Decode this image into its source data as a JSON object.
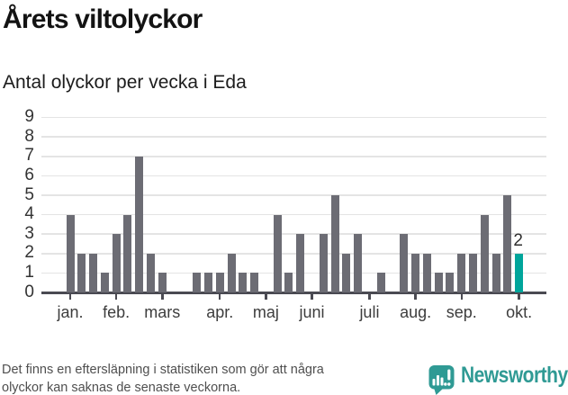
{
  "header": {
    "title": "Årets viltolyckor",
    "subtitle": "Antal olyckor per vecka i Eda"
  },
  "chart_data": {
    "type": "bar",
    "title": "Årets viltolyckor",
    "subtitle": "Antal olyckor per vecka i Eda",
    "ylabel": "Antal olyckor per vecka",
    "ylim": [
      0,
      9
    ],
    "grid": true,
    "y_ticks": [
      0,
      1,
      2,
      3,
      4,
      5,
      6,
      7,
      8,
      9
    ],
    "weeks": [
      4,
      2,
      2,
      1,
      3,
      4,
      7,
      2,
      1,
      0,
      0,
      1,
      1,
      1,
      2,
      1,
      1,
      0,
      4,
      1,
      3,
      0,
      3,
      5,
      2,
      3,
      0,
      1,
      0,
      3,
      2,
      2,
      1,
      1,
      2,
      2,
      4,
      2,
      5,
      2
    ],
    "month_ticks": [
      {
        "label": "jan.",
        "week": 1
      },
      {
        "label": "feb.",
        "week": 5
      },
      {
        "label": "mars",
        "week": 9
      },
      {
        "label": "apr.",
        "week": 14
      },
      {
        "label": "maj",
        "week": 18
      },
      {
        "label": "juni",
        "week": 22
      },
      {
        "label": "juli",
        "week": 27
      },
      {
        "label": "aug.",
        "week": 31
      },
      {
        "label": "sep.",
        "week": 35
      },
      {
        "label": "okt.",
        "week": 40
      }
    ],
    "highlight_last": true,
    "annotation": {
      "week": 40,
      "text": "2"
    },
    "colors": {
      "bar": "#6c6c74",
      "highlight": "#00a59b",
      "axis": "#4a4a52",
      "gridline": "#e4e4e4",
      "label": "#3d3d3d"
    }
  },
  "footer": {
    "note_line1": "Det finns en eftersläpning i statistiken som gör att några",
    "note_line2": "olyckor kan saknas de senaste veckorna.",
    "brand": "Newsworthy",
    "brand_color": "#2f9a94"
  }
}
